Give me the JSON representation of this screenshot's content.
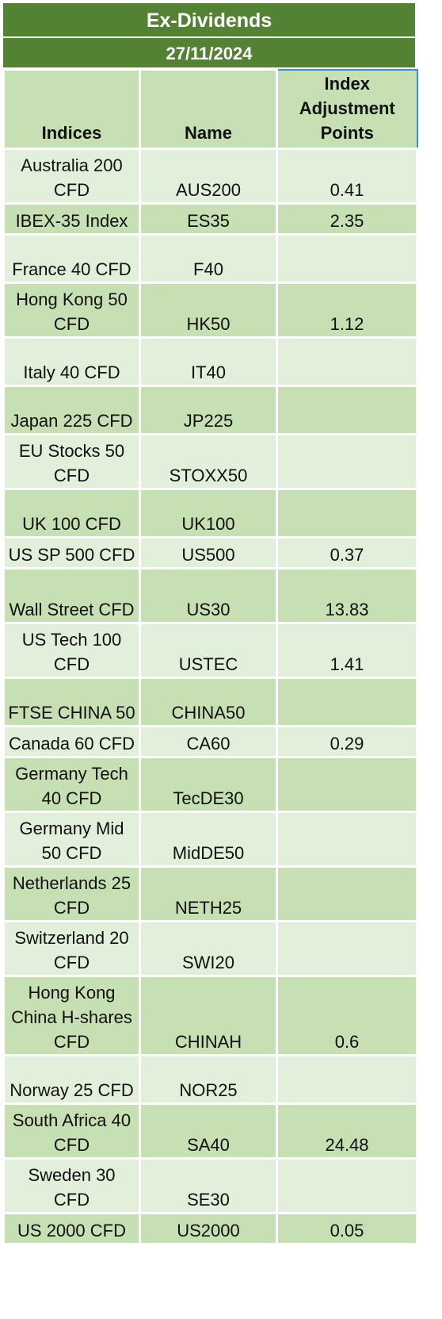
{
  "title": "Ex-Dividends",
  "date": "27/11/2024",
  "columns": {
    "indices": "Indices",
    "name": "Name",
    "adjustment": "Index Adjustment Points"
  },
  "rows": [
    {
      "index": "Australia 200 CFD",
      "name": "AUS200",
      "points": "0.41"
    },
    {
      "index": "IBEX-35 Index",
      "name": "ES35",
      "points": "2.35"
    },
    {
      "index": "France 40 CFD",
      "name": "F40",
      "points": ""
    },
    {
      "index": "Hong Kong 50 CFD",
      "name": "HK50",
      "points": "1.12"
    },
    {
      "index": "Italy 40 CFD",
      "name": "IT40",
      "points": ""
    },
    {
      "index": "Japan 225 CFD",
      "name": "JP225",
      "points": ""
    },
    {
      "index": "EU Stocks 50 CFD",
      "name": "STOXX50",
      "points": ""
    },
    {
      "index": "UK 100 CFD",
      "name": "UK100",
      "points": ""
    },
    {
      "index": "US SP 500 CFD",
      "name": "US500",
      "points": "0.37"
    },
    {
      "index": "Wall Street CFD",
      "name": "US30",
      "points": "13.83"
    },
    {
      "index": "US Tech 100 CFD",
      "name": "USTEC",
      "points": "1.41"
    },
    {
      "index": "FTSE CHINA 50",
      "name": "CHINA50",
      "points": ""
    },
    {
      "index": "Canada 60 CFD",
      "name": "CA60",
      "points": "0.29"
    },
    {
      "index": "Germany Tech 40 CFD",
      "name": "TecDE30",
      "points": ""
    },
    {
      "index": "Germany Mid 50 CFD",
      "name": "MidDE50",
      "points": ""
    },
    {
      "index": "Netherlands 25 CFD",
      "name": "NETH25",
      "points": ""
    },
    {
      "index": "Switzerland 20 CFD",
      "name": "SWI20",
      "points": ""
    },
    {
      "index": "Hong Kong China H-shares CFD",
      "name": "CHINAH",
      "points": "0.6"
    },
    {
      "index": "Norway 25 CFD",
      "name": "NOR25",
      "points": ""
    },
    {
      "index": "South Africa 40 CFD",
      "name": "SA40",
      "points": "24.48"
    },
    {
      "index": "Sweden 30 CFD",
      "name": "SE30",
      "points": ""
    },
    {
      "index": "US 2000 CFD",
      "name": "US2000",
      "points": "0.05"
    }
  ]
}
